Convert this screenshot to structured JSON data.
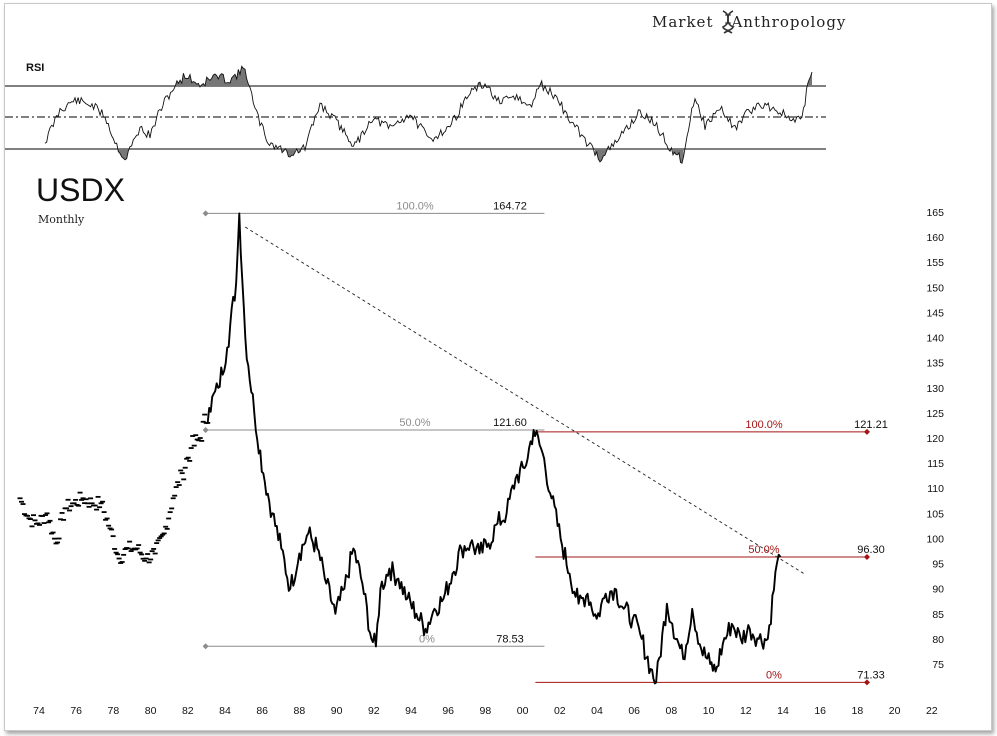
{
  "brand": {
    "left": "Market",
    "right": "Anthropology"
  },
  "colors": {
    "price": "#000000",
    "fib_gray": "#8c8c8c",
    "fib_red": "#a31515",
    "rsi_fill": "#777777"
  },
  "chart_data": [
    {
      "type": "line",
      "title": "RSI",
      "note": "RSI panel with upper, lower and dash-dot middle reference lines",
      "shaded_extremes": true
    },
    {
      "type": "scatter",
      "title": "USDX",
      "subtitle": "Monthly",
      "xlim": [
        1973,
        2022
      ],
      "ylim": [
        71,
        166
      ],
      "x_ticks": [
        "74",
        "76",
        "78",
        "80",
        "82",
        "84",
        "86",
        "88",
        "90",
        "92",
        "94",
        "96",
        "98",
        "00",
        "02",
        "04",
        "06",
        "08",
        "10",
        "12",
        "14",
        "16",
        "18",
        "20",
        "22"
      ],
      "y_ticks": [
        75,
        80,
        85,
        90,
        95,
        100,
        105,
        110,
        115,
        120,
        125,
        130,
        135,
        140,
        145,
        150,
        155,
        160,
        165
      ],
      "series": [
        {
          "points": [
            [
              1973.0,
              108
            ],
            [
              1973.5,
              104
            ],
            [
              1974.0,
              103
            ],
            [
              1974.5,
              105
            ],
            [
              1975.0,
              99
            ],
            [
              1975.5,
              106
            ],
            [
              1976.0,
              107
            ],
            [
              1976.5,
              108
            ],
            [
              1977.0,
              107
            ],
            [
              1977.5,
              107
            ],
            [
              1978.0,
              102
            ],
            [
              1978.5,
              96
            ],
            [
              1979.0,
              98
            ],
            [
              1979.5,
              98
            ],
            [
              1980.0,
              96
            ],
            [
              1980.5,
              97
            ],
            [
              1981.0,
              101
            ],
            [
              1981.5,
              108
            ],
            [
              1982.0,
              113
            ],
            [
              1982.5,
              118
            ],
            [
              1983.0,
              120
            ],
            [
              1983.5,
              126
            ],
            [
              1984.0,
              130
            ],
            [
              1984.5,
              138
            ],
            [
              1985.0,
              151
            ],
            [
              1985.17,
              164.7
            ],
            [
              1985.5,
              140
            ],
            [
              1986.0,
              125
            ],
            [
              1986.5,
              113
            ],
            [
              1987.0,
              105
            ],
            [
              1987.5,
              98
            ],
            [
              1988.0,
              90
            ],
            [
              1988.5,
              97
            ],
            [
              1989.0,
              101
            ],
            [
              1989.5,
              98
            ],
            [
              1990.0,
              91
            ],
            [
              1990.5,
              85
            ],
            [
              1991.0,
              90
            ],
            [
              1991.5,
              98
            ],
            [
              1992.0,
              91
            ],
            [
              1992.5,
              80
            ],
            [
              1992.75,
              78.5
            ],
            [
              1993.0,
              90
            ],
            [
              1993.5,
              94
            ],
            [
              1994.0,
              92
            ],
            [
              1994.5,
              88
            ],
            [
              1995.0,
              85
            ],
            [
              1995.5,
              82
            ],
            [
              1996.0,
              86
            ],
            [
              1996.5,
              88
            ],
            [
              1997.0,
              93
            ],
            [
              1997.5,
              98
            ],
            [
              1998.0,
              99
            ],
            [
              1998.5,
              97
            ],
            [
              1999.0,
              99
            ],
            [
              1999.5,
              103
            ],
            [
              2000.0,
              105
            ],
            [
              2000.5,
              112
            ],
            [
              2001.0,
              114
            ],
            [
              2001.5,
              121.6
            ],
            [
              2002.0,
              117
            ],
            [
              2002.5,
              108
            ],
            [
              2003.0,
              100
            ],
            [
              2003.5,
              93
            ],
            [
              2004.0,
              87
            ],
            [
              2004.5,
              89
            ],
            [
              2005.0,
              84
            ],
            [
              2005.5,
              89
            ],
            [
              2006.0,
              90
            ],
            [
              2006.5,
              86
            ],
            [
              2007.0,
              84
            ],
            [
              2007.5,
              80
            ],
            [
              2008.0,
              74
            ],
            [
              2008.3,
              71.3
            ],
            [
              2008.9,
              87
            ],
            [
              2009.2,
              83
            ],
            [
              2009.8,
              76
            ],
            [
              2010.3,
              86
            ],
            [
              2010.8,
              78
            ],
            [
              2011.3,
              75
            ],
            [
              2011.6,
              73.5
            ],
            [
              2012.0,
              79
            ],
            [
              2012.5,
              83
            ],
            [
              2013.0,
              80
            ],
            [
              2013.5,
              82
            ],
            [
              2014.0,
              80
            ],
            [
              2014.5,
              80
            ],
            [
              2015.0,
              95
            ],
            [
              2015.2,
              96.3
            ]
          ]
        }
      ],
      "trendline": {
        "from": [
          1985.5,
          162
        ],
        "to": [
          2016.5,
          93
        ],
        "style": "dashed"
      },
      "fib_gray": [
        {
          "pct": "100.0%",
          "value": "164.72",
          "y": 164.72
        },
        {
          "pct": "50.0%",
          "value": "121.60",
          "y": 121.6
        },
        {
          "pct": "0%",
          "value": "78.53",
          "y": 78.53
        }
      ],
      "fib_red": [
        {
          "pct": "100.0%",
          "value": "121.21",
          "y": 121.21
        },
        {
          "pct": "50.0%",
          "value": "96.30",
          "y": 96.3
        },
        {
          "pct": "0%",
          "value": "71.33",
          "y": 71.33
        }
      ]
    }
  ]
}
